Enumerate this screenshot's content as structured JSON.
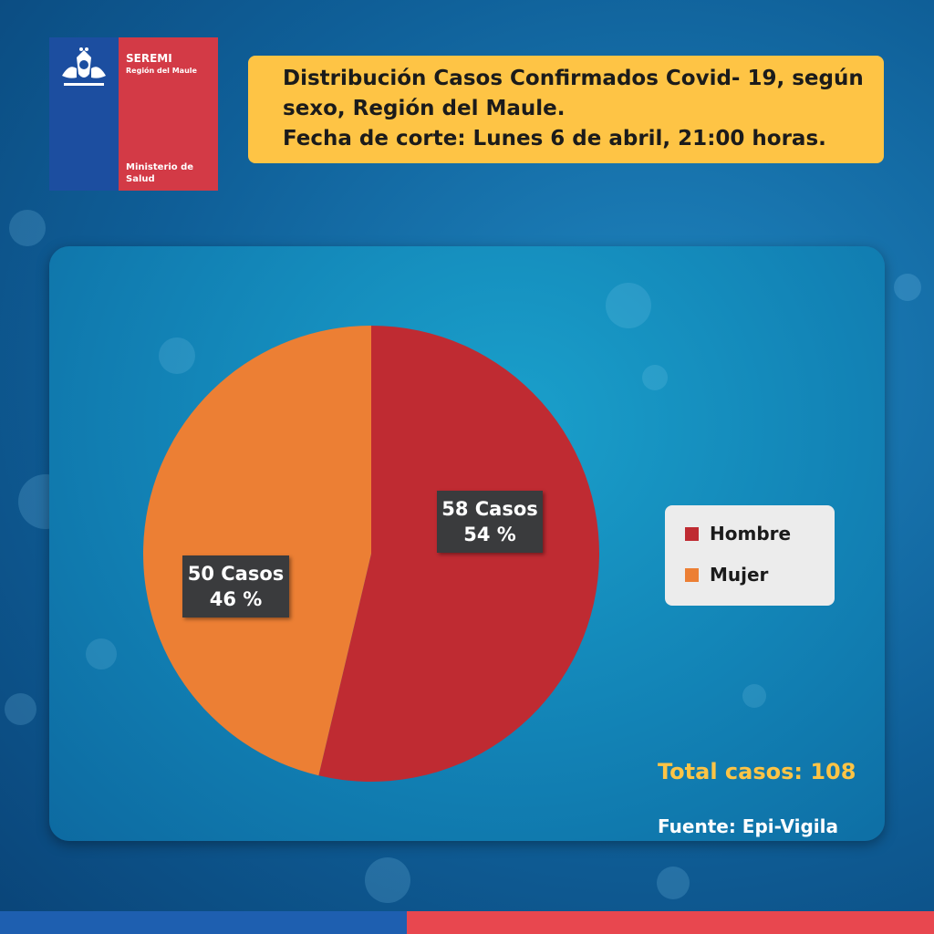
{
  "logo": {
    "name": "SEREMI",
    "region": "Región del Maule",
    "ministry": "Ministerio de Salud",
    "colors": {
      "blue": "#1c4ea0",
      "red": "#d33a46"
    }
  },
  "header": {
    "title_line1": "Distribución  Casos Confirmados Covid- 19, según",
    "title_line2": "sexo, Región del Maule.",
    "title_line3": "Fecha de corte: Lunes 6 de abril, 21:00 horas."
  },
  "chart_data": {
    "type": "pie",
    "slices": [
      {
        "name": "Hombre",
        "value": 58,
        "percent": 54,
        "label_cases": "58 Casos",
        "label_pct": "54 %",
        "color": "#bf2b32"
      },
      {
        "name": "Mujer",
        "value": 50,
        "percent": 46,
        "label_cases": "50 Casos",
        "label_pct": "46 %",
        "color": "#ec7f34"
      }
    ],
    "legend": {
      "position": "right"
    },
    "legend_items": [
      "Hombre",
      "Mujer"
    ]
  },
  "footer": {
    "total": "Total casos: 108",
    "source": "Fuente: Epi-Vigila"
  }
}
